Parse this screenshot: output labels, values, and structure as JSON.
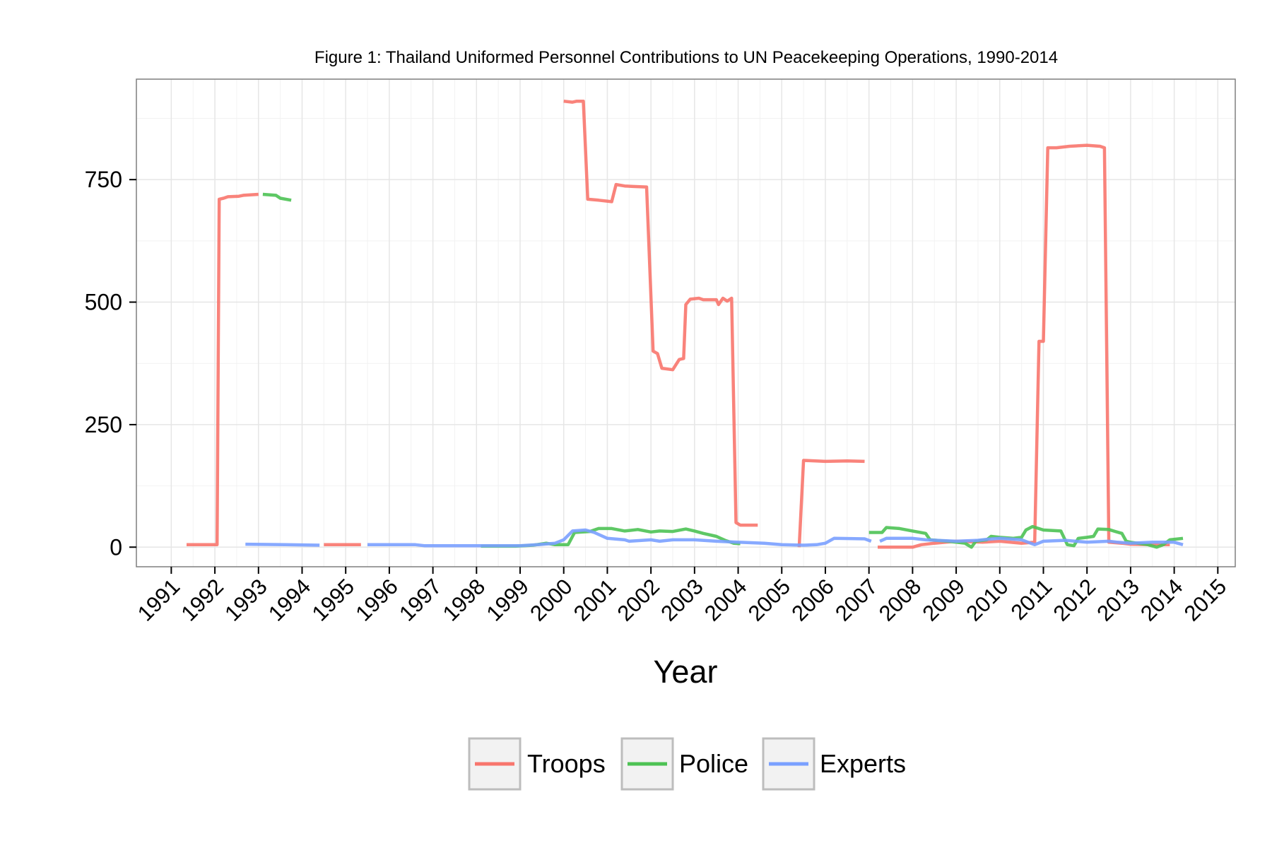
{
  "chart_data": {
    "type": "line",
    "title": "Figure 1: Thailand Uniformed Personnel Contributions to UN Peacekeeping Operations, 1990-2014",
    "xlabel": "Year",
    "ylabel": "",
    "xlim": [
      1990.2,
      2015.4
    ],
    "ylim": [
      -40,
      955
    ],
    "y_ticks": [
      0,
      250,
      500,
      750
    ],
    "x_ticks": [
      1991,
      1992,
      1993,
      1994,
      1995,
      1996,
      1997,
      1998,
      1999,
      2000,
      2001,
      2002,
      2003,
      2004,
      2005,
      2006,
      2007,
      2008,
      2009,
      2010,
      2011,
      2012,
      2013,
      2014,
      2015
    ],
    "grid": true,
    "legend_position": "bottom",
    "colors": {
      "Troops": "#F8766D",
      "Police": "#4DC254",
      "Experts": "#7AA0FF",
      "panel_border": "#7f7f7f",
      "grid": "#e6e6e6"
    },
    "series": [
      {
        "name": "Troops",
        "color": "#F8766D",
        "segments": [
          [
            [
              1991.35,
              5
            ],
            [
              1991.95,
              5
            ],
            [
              1992.05,
              5
            ],
            [
              1992.1,
              710
            ],
            [
              1992.2,
              712
            ],
            [
              1992.3,
              715
            ],
            [
              1992.55,
              716
            ],
            [
              1992.65,
              718
            ],
            [
              1993.0,
              720
            ]
          ],
          [
            [
              1994.5,
              5
            ],
            [
              1995.35,
              5
            ]
          ],
          [
            [
              2000.0,
              910
            ],
            [
              2000.2,
              908
            ],
            [
              2000.3,
              910
            ],
            [
              2000.45,
              910
            ],
            [
              2000.55,
              710
            ],
            [
              2000.8,
              708
            ],
            [
              2001.1,
              705
            ],
            [
              2001.2,
              740
            ],
            [
              2001.4,
              737
            ],
            [
              2001.6,
              736
            ],
            [
              2001.9,
              735
            ],
            [
              2002.05,
              400
            ],
            [
              2002.15,
              395
            ],
            [
              2002.25,
              365
            ],
            [
              2002.5,
              362
            ],
            [
              2002.65,
              383
            ],
            [
              2002.75,
              385
            ],
            [
              2002.8,
              495
            ],
            [
              2002.9,
              506
            ],
            [
              2003.1,
              508
            ],
            [
              2003.2,
              505
            ],
            [
              2003.5,
              505
            ],
            [
              2003.55,
              495
            ],
            [
              2003.65,
              508
            ],
            [
              2003.75,
              502
            ],
            [
              2003.85,
              508
            ],
            [
              2003.95,
              50
            ],
            [
              2004.05,
              45
            ],
            [
              2004.45,
              45
            ]
          ],
          [
            [
              2005.4,
              0
            ],
            [
              2005.5,
              177
            ],
            [
              2006.0,
              175
            ],
            [
              2006.5,
              176
            ],
            [
              2006.9,
              175
            ]
          ],
          [
            [
              2007.2,
              0
            ],
            [
              2008.0,
              0
            ],
            [
              2008.2,
              5
            ],
            [
              2008.5,
              8
            ],
            [
              2009.0,
              12
            ],
            [
              2009.6,
              10
            ],
            [
              2010.0,
              12
            ],
            [
              2010.5,
              8
            ],
            [
              2010.8,
              10
            ],
            [
              2010.9,
              420
            ],
            [
              2011.0,
              420
            ],
            [
              2011.1,
              815
            ],
            [
              2011.3,
              815
            ],
            [
              2011.6,
              818
            ],
            [
              2012.0,
              820
            ],
            [
              2012.3,
              818
            ],
            [
              2012.4,
              815
            ],
            [
              2012.5,
              10
            ],
            [
              2012.8,
              8
            ],
            [
              2013.0,
              6
            ],
            [
              2013.5,
              5
            ],
            [
              2013.9,
              5
            ]
          ]
        ]
      },
      {
        "name": "Police",
        "color": "#4DC254",
        "segments": [
          [
            [
              1993.1,
              720
            ],
            [
              1993.4,
              718
            ],
            [
              1993.5,
              712
            ],
            [
              1993.75,
              708
            ]
          ],
          [
            [
              1998.1,
              2
            ],
            [
              1998.9,
              2
            ],
            [
              1999.3,
              4
            ],
            [
              1999.6,
              8
            ],
            [
              1999.8,
              5
            ],
            [
              2000.1,
              5
            ],
            [
              2000.25,
              30
            ],
            [
              2000.6,
              32
            ],
            [
              2000.8,
              38
            ],
            [
              2001.1,
              38
            ],
            [
              2001.4,
              33
            ],
            [
              2001.7,
              36
            ],
            [
              2002.0,
              31
            ],
            [
              2002.2,
              33
            ],
            [
              2002.5,
              32
            ],
            [
              2002.8,
              37
            ],
            [
              2003.0,
              33
            ],
            [
              2003.2,
              28
            ],
            [
              2003.5,
              22
            ],
            [
              2003.7,
              14
            ],
            [
              2003.9,
              8
            ],
            [
              2004.05,
              7
            ]
          ],
          [
            [
              2007.0,
              30
            ],
            [
              2007.3,
              30
            ],
            [
              2007.4,
              40
            ],
            [
              2007.7,
              38
            ],
            [
              2008.0,
              33
            ],
            [
              2008.3,
              28
            ],
            [
              2008.4,
              15
            ],
            [
              2008.8,
              12
            ],
            [
              2009.0,
              10
            ],
            [
              2009.2,
              8
            ],
            [
              2009.35,
              0
            ],
            [
              2009.45,
              12
            ],
            [
              2009.7,
              15
            ],
            [
              2009.8,
              22
            ],
            [
              2010.0,
              20
            ],
            [
              2010.3,
              18
            ],
            [
              2010.5,
              20
            ],
            [
              2010.6,
              35
            ],
            [
              2010.75,
              42
            ],
            [
              2011.0,
              35
            ],
            [
              2011.4,
              33
            ],
            [
              2011.55,
              5
            ],
            [
              2011.7,
              3
            ],
            [
              2011.8,
              18
            ],
            [
              2012.0,
              20
            ],
            [
              2012.15,
              22
            ],
            [
              2012.25,
              37
            ],
            [
              2012.5,
              36
            ],
            [
              2012.65,
              32
            ],
            [
              2012.8,
              28
            ],
            [
              2012.9,
              12
            ],
            [
              2013.0,
              10
            ],
            [
              2013.4,
              5
            ],
            [
              2013.6,
              0
            ],
            [
              2013.75,
              5
            ],
            [
              2013.9,
              15
            ],
            [
              2014.2,
              18
            ]
          ]
        ]
      },
      {
        "name": "Experts",
        "color": "#7AA0FF",
        "segments": [
          [
            [
              1992.7,
              6
            ],
            [
              1993.6,
              5
            ],
            [
              1994.4,
              4
            ]
          ],
          [
            [
              1995.5,
              5
            ],
            [
              1996.6,
              5
            ],
            [
              1996.8,
              3
            ],
            [
              1999.0,
              3
            ],
            [
              1999.4,
              5
            ],
            [
              1999.8,
              8
            ],
            [
              2000.0,
              15
            ],
            [
              2000.2,
              33
            ],
            [
              2000.5,
              35
            ],
            [
              2000.7,
              30
            ],
            [
              2001.0,
              18
            ],
            [
              2001.4,
              15
            ],
            [
              2001.5,
              12
            ],
            [
              2002.0,
              15
            ],
            [
              2002.2,
              12
            ],
            [
              2002.5,
              15
            ],
            [
              2003.0,
              15
            ],
            [
              2003.5,
              12
            ],
            [
              2004.0,
              10
            ],
            [
              2004.6,
              8
            ],
            [
              2005.0,
              5
            ],
            [
              2005.5,
              4
            ],
            [
              2005.8,
              5
            ],
            [
              2006.0,
              8
            ],
            [
              2006.2,
              18
            ],
            [
              2006.9,
              17
            ],
            [
              2007.05,
              12
            ]
          ],
          [
            [
              2007.25,
              12
            ],
            [
              2007.4,
              18
            ],
            [
              2008.0,
              18
            ],
            [
              2008.3,
              15
            ],
            [
              2009.0,
              12
            ],
            [
              2009.5,
              14
            ],
            [
              2009.7,
              16
            ],
            [
              2010.0,
              18
            ],
            [
              2010.5,
              15
            ],
            [
              2010.8,
              5
            ],
            [
              2011.0,
              12
            ],
            [
              2011.5,
              14
            ],
            [
              2012.0,
              10
            ],
            [
              2012.5,
              12
            ],
            [
              2012.7,
              10
            ],
            [
              2013.0,
              8
            ],
            [
              2013.5,
              10
            ],
            [
              2014.0,
              10
            ],
            [
              2014.2,
              5
            ]
          ]
        ]
      }
    ]
  }
}
